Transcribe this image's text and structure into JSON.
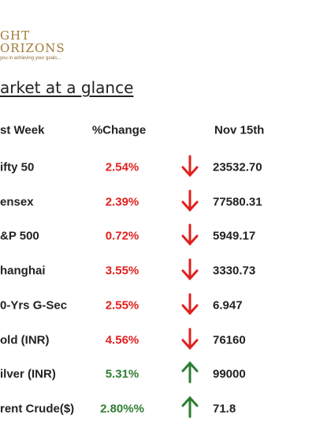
{
  "header": {
    "logo_line1": "GHT",
    "logo_line2": "ORIZONS",
    "tagline": "you in achieving your goals...",
    "title": "arket at a glance"
  },
  "table": {
    "columns": [
      "st Week",
      "%Change",
      "Nov 15th"
    ],
    "rows": [
      {
        "name": "ifty 50",
        "change": "2.54%",
        "value": "23532.70",
        "trend": "down",
        "color": "#e0201e"
      },
      {
        "name": "ensex",
        "change": "2.39%",
        "value": "77580.31",
        "trend": "down",
        "color": "#e0201e"
      },
      {
        "name": "&P 500",
        "change": "0.72%",
        "value": "5949.17",
        "trend": "down",
        "color": "#e0201e"
      },
      {
        "name": "hanghai",
        "change": "3.55%",
        "value": "3330.73",
        "trend": "down",
        "color": "#e0201e"
      },
      {
        "name": "0-Yrs G-Sec",
        "change": "2.55%",
        "value": "6.947",
        "trend": "down",
        "color": "#e0201e"
      },
      {
        "name": "old (INR)",
        "change": "4.56%",
        "value": "76160",
        "trend": "down",
        "color": "#e0201e"
      },
      {
        "name": "ilver (INR)",
        "change": "5.31%",
        "value": "99000",
        "trend": "up",
        "color": "#2e7d32"
      },
      {
        "name": "rent Crude($)",
        "change": "2.80%%",
        "value": "71.8",
        "trend": "up",
        "color": "#2e7d32"
      }
    ]
  }
}
